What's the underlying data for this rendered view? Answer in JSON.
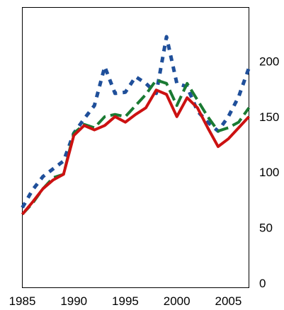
{
  "chart_data": {
    "type": "line",
    "title": "",
    "xlabel": "",
    "ylabel": "",
    "x": [
      1985,
      1986,
      1987,
      1988,
      1989,
      1990,
      1991,
      1992,
      1993,
      1994,
      1995,
      1996,
      1997,
      1998,
      1999,
      2000,
      2001,
      2002,
      2003,
      2004,
      2005,
      2006,
      2007
    ],
    "xlim": [
      1985,
      2007
    ],
    "ylim": [
      0,
      250
    ],
    "x_ticks": [
      1985,
      1990,
      1995,
      2000,
      2005
    ],
    "y_ticks": [
      0,
      50,
      100,
      150,
      200
    ],
    "x_tick_labels": [
      "1985",
      "1990",
      "1995",
      "2000",
      "2005"
    ],
    "y_tick_labels": [
      "0",
      "50",
      "100",
      "150",
      "200"
    ],
    "y_axis_side": "right",
    "grid": false,
    "legend": "none",
    "series": [
      {
        "color": "#1f4f9a",
        "line_style": "dotted",
        "values": [
          68,
          84,
          96,
          103,
          110,
          135,
          148,
          160,
          195,
          171,
          172,
          186,
          180,
          171,
          222,
          180,
          177,
          155,
          145,
          137,
          150,
          168,
          194
        ]
      },
      {
        "color": "#1a7a32",
        "line_style": "dashed",
        "values": [
          62,
          72,
          85,
          95,
          98,
          135,
          143,
          140,
          150,
          152,
          150,
          160,
          170,
          183,
          180,
          160,
          180,
          165,
          150,
          137,
          140,
          145,
          158
        ]
      },
      {
        "color": "#cc1111",
        "line_style": "solid",
        "values": [
          62,
          73,
          85,
          93,
          98,
          133,
          142,
          138,
          142,
          150,
          145,
          152,
          158,
          174,
          170,
          150,
          167,
          158,
          140,
          123,
          130,
          140,
          150
        ]
      }
    ]
  }
}
